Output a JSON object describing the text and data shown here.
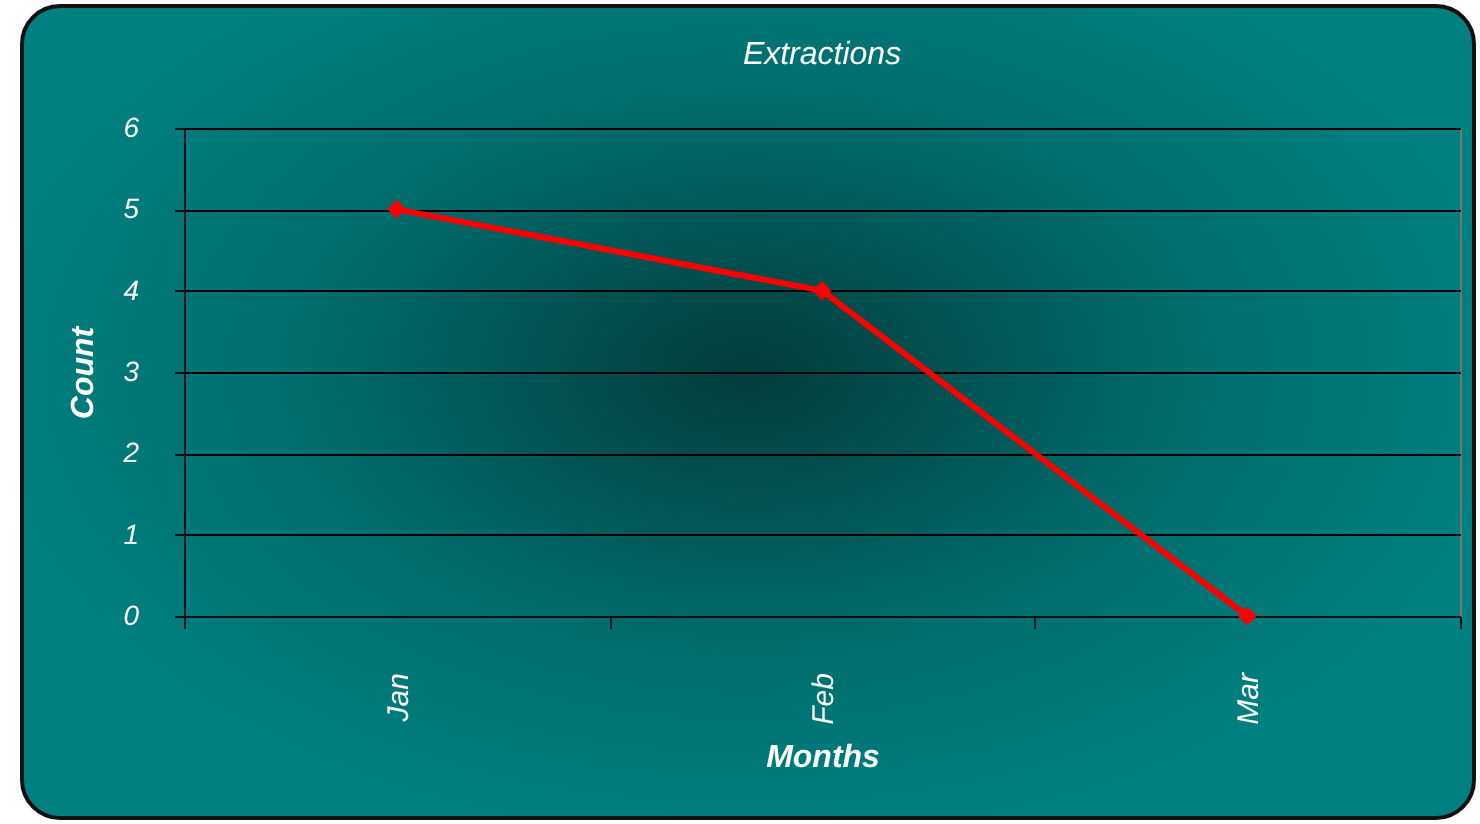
{
  "chart_data": {
    "type": "line",
    "title": "Extractions",
    "xlabel": "Months",
    "ylabel": "Count",
    "categories": [
      "Jan",
      "Feb",
      "Mar"
    ],
    "series": [
      {
        "color": "#ff0000",
        "values": [
          5,
          4,
          0
        ]
      }
    ],
    "ylim": [
      0,
      6
    ],
    "yticks": [
      0,
      1,
      2,
      3,
      4,
      5,
      6
    ],
    "grid": "y",
    "marker": "diamond",
    "line_style": "solid"
  }
}
